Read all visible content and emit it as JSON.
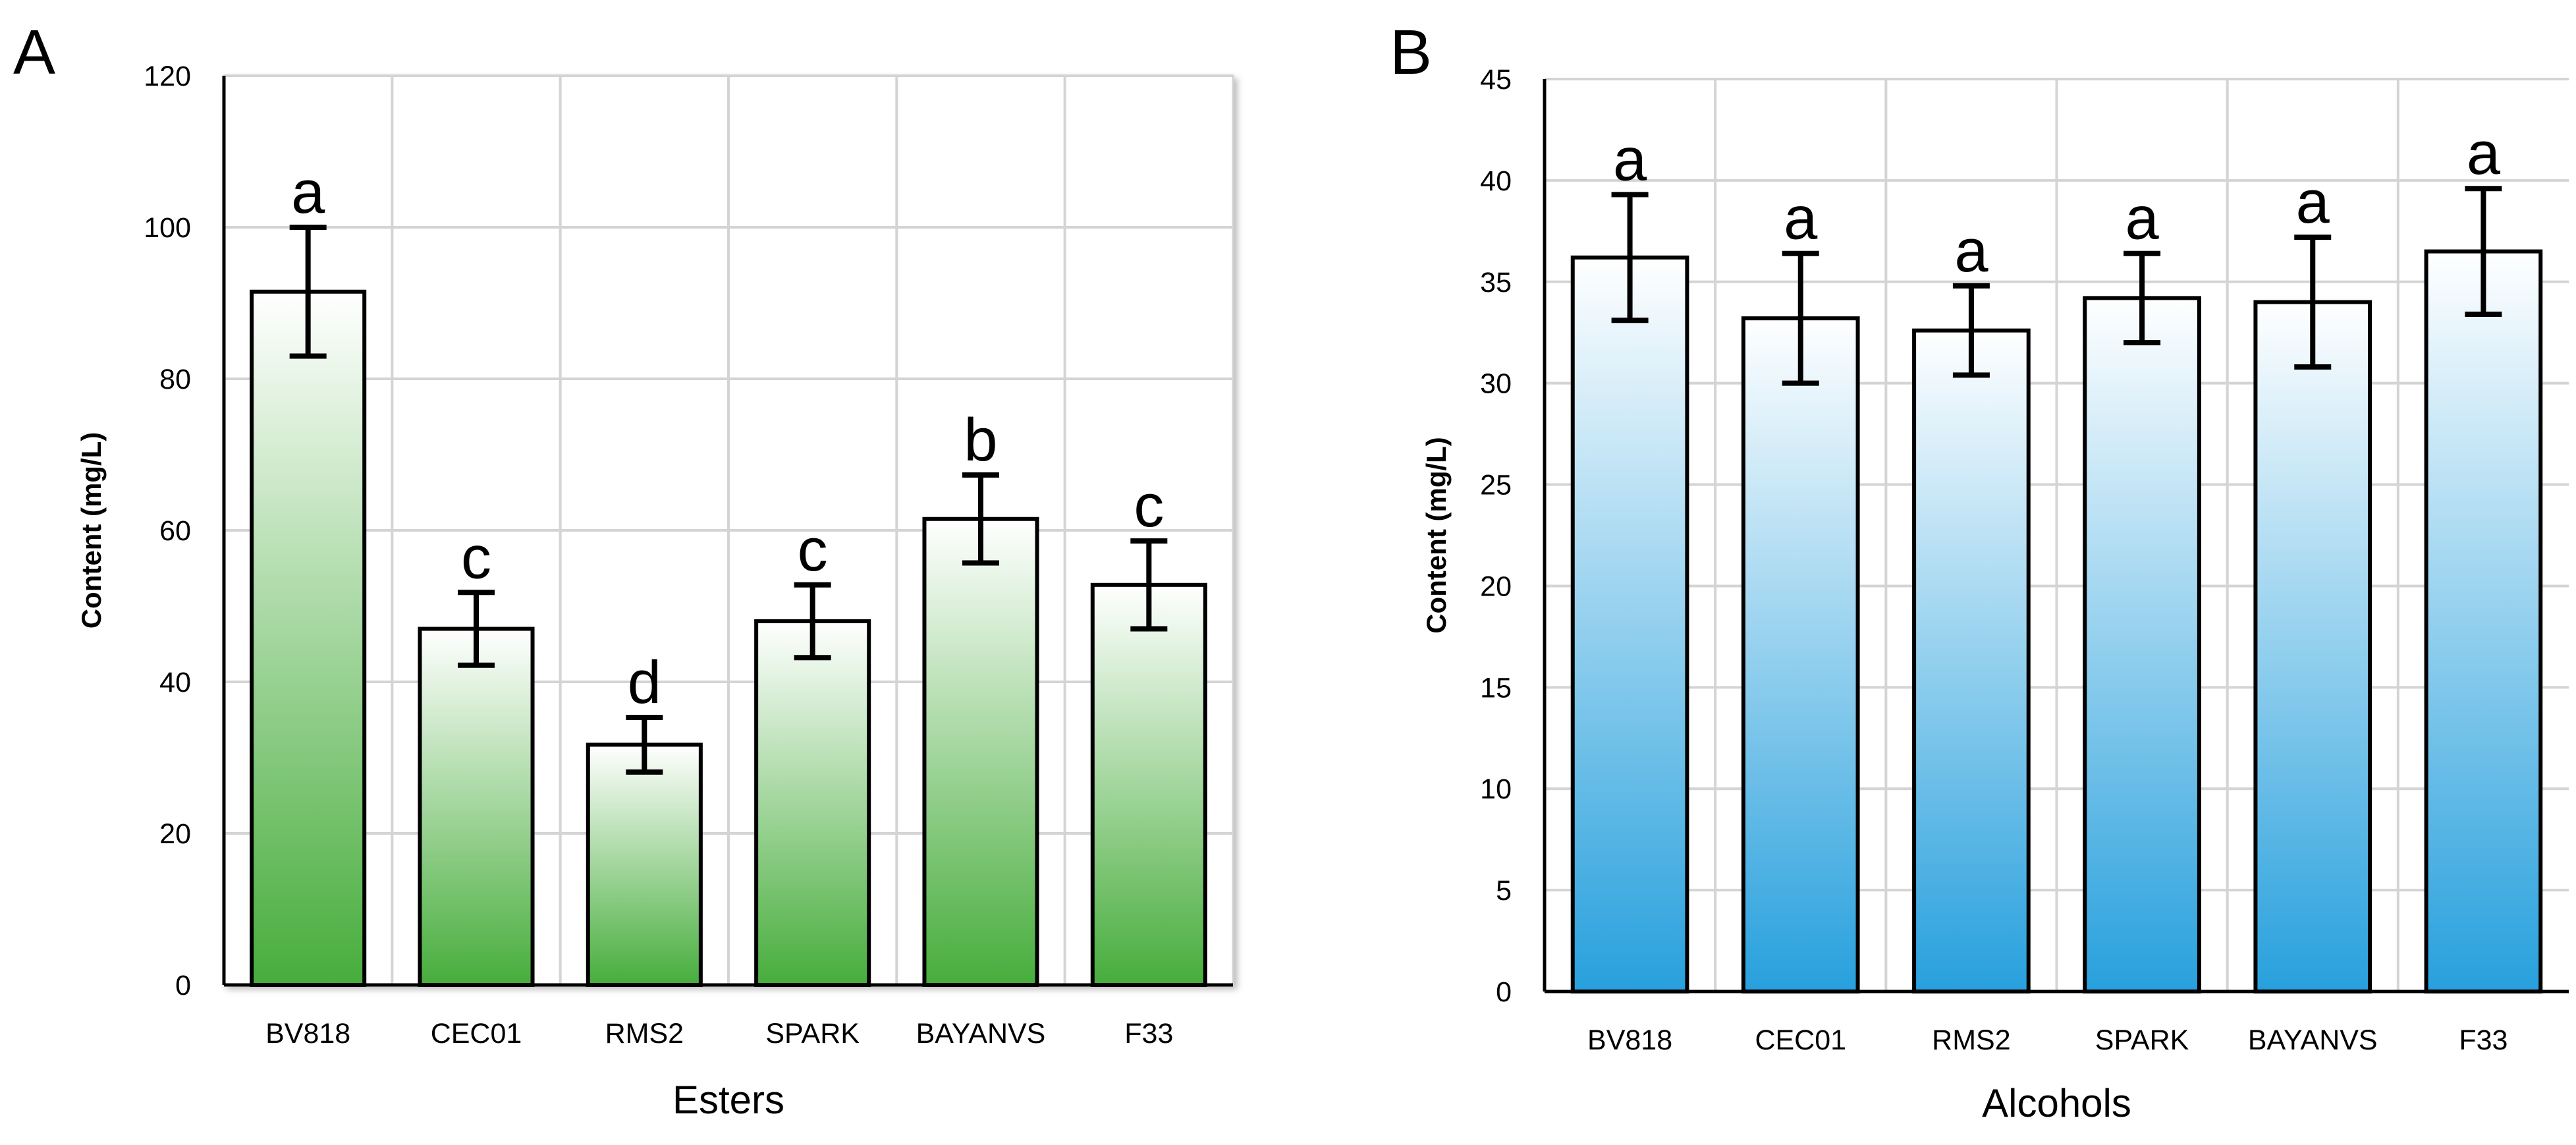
{
  "chart_data": [
    {
      "type": "bar",
      "panel_label": "A",
      "xlabel": "Esters",
      "ylabel": "Content (mg/L)",
      "categories": [
        "BV818",
        "CEC01",
        "RMS2",
        "SPARK",
        "BAYANVS",
        "F33"
      ],
      "values": [
        91.5,
        47,
        31.7,
        48,
        61.5,
        52.8
      ],
      "errors": [
        8.5,
        4.8,
        3.6,
        4.8,
        5.8,
        5.8
      ],
      "significance_letters": [
        "a",
        "c",
        "d",
        "c",
        "b",
        "c"
      ],
      "ylim": [
        0,
        120
      ],
      "yticks": [
        0,
        20,
        40,
        60,
        80,
        100,
        120
      ],
      "grid": true,
      "legend": "none",
      "colors": {
        "top": "#ffffff",
        "bottom": "#47ad3c"
      }
    },
    {
      "type": "bar",
      "panel_label": "B",
      "xlabel": "Alcohols",
      "ylabel": "Content (mg/L)",
      "categories": [
        "BV818",
        "CEC01",
        "RMS2",
        "SPARK",
        "BAYANVS",
        "F33"
      ],
      "values": [
        36.2,
        33.2,
        32.6,
        34.2,
        34,
        36.5
      ],
      "errors": [
        3.1,
        3.2,
        2.2,
        2.2,
        3.2,
        3.1
      ],
      "significance_letters": [
        "a",
        "a",
        "a",
        "a",
        "a",
        "a"
      ],
      "ylim": [
        0,
        45
      ],
      "yticks": [
        0,
        5,
        10,
        15,
        20,
        25,
        30,
        35,
        40,
        45
      ],
      "grid": true,
      "legend": "none",
      "colors": {
        "top": "#ffffff",
        "bottom": "#27a0dd"
      }
    }
  ]
}
